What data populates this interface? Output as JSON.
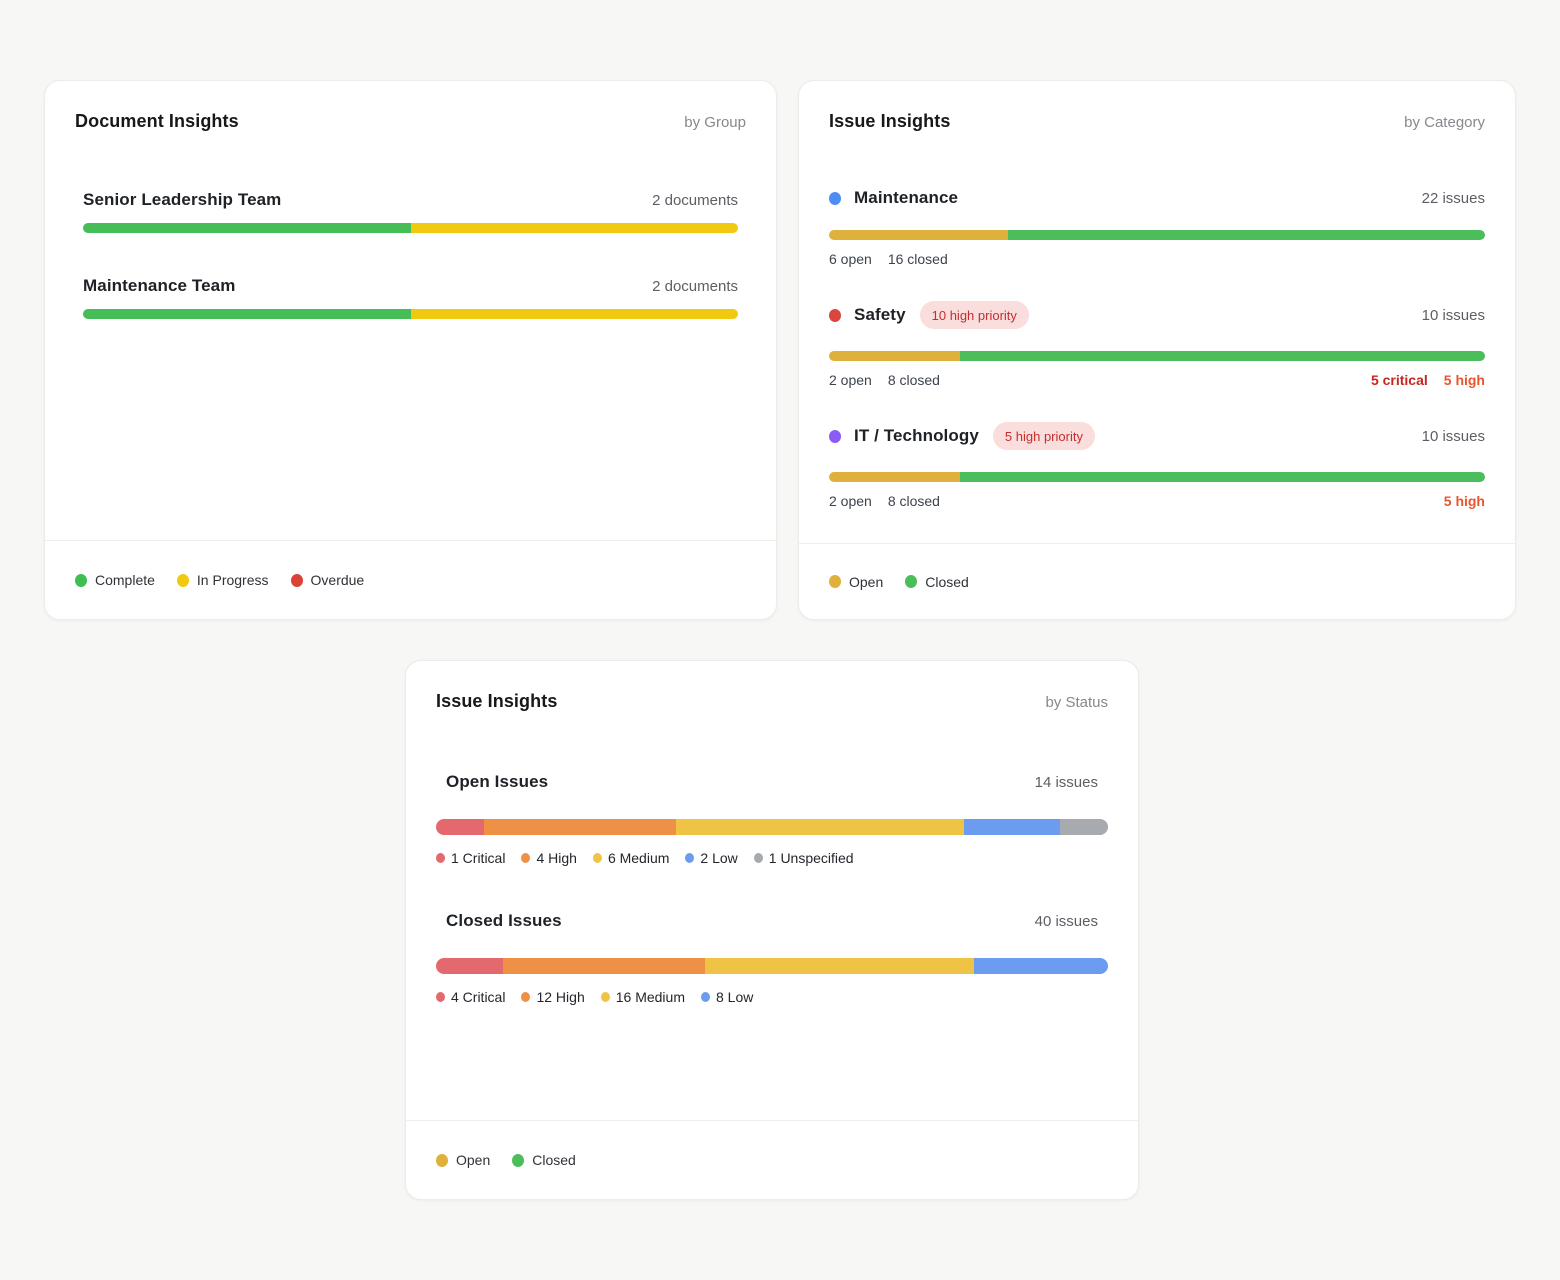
{
  "cards": {
    "documents": {
      "title": "Document Insights",
      "subtitle": "by Group",
      "rows": [
        {
          "name": "Senior Leadership Team",
          "total": "2 documents",
          "segments": [
            {
              "label": "Complete",
              "color": "#45BE58",
              "pct": 50
            },
            {
              "label": "In Progress",
              "color": "#F2C911",
              "pct": 50
            }
          ]
        },
        {
          "name": "Maintenance Team",
          "total": "2 documents",
          "segments": [
            {
              "label": "Complete",
              "color": "#45BE58",
              "pct": 50
            },
            {
              "label": "In Progress",
              "color": "#F2C911",
              "pct": 50
            }
          ]
        }
      ],
      "legend": [
        {
          "label": "Complete",
          "color": "#3FBE54"
        },
        {
          "label": "In Progress",
          "color": "#F2C911"
        },
        {
          "label": "Overdue",
          "color": "#DB4136"
        }
      ]
    },
    "issues_by_category": {
      "title": "Issue Insights",
      "subtitle": "by Category",
      "rows": [
        {
          "dot_color": "#4C8DF5",
          "name": "Maintenance",
          "badge": "",
          "total": "22 issues",
          "segments": [
            {
              "label": "Open",
              "color": "#DFB13C",
              "pct": 27.3
            },
            {
              "label": "Closed",
              "color": "#4BBE5B",
              "pct": 72.7
            }
          ],
          "stats": [
            "6 open",
            "16 closed"
          ],
          "right_stats": []
        },
        {
          "dot_color": "#DB4540",
          "name": "Safety",
          "badge": "10 high priority",
          "total": "10 issues",
          "segments": [
            {
              "label": "Open",
              "color": "#DFB13C",
              "pct": 20
            },
            {
              "label": "Closed",
              "color": "#4BBE5B",
              "pct": 80
            }
          ],
          "stats": [
            "2 open",
            "8 closed"
          ],
          "right_stats": [
            {
              "text": "5 critical",
              "color": "#C5261F"
            },
            {
              "text": "5 high",
              "color": "#E8562E"
            }
          ]
        },
        {
          "dot_color": "#8A5BF6",
          "name": "IT / Technology",
          "badge": "5 high priority",
          "total": "10 issues",
          "segments": [
            {
              "label": "Open",
              "color": "#DFB13C",
              "pct": 20
            },
            {
              "label": "Closed",
              "color": "#4BBE5B",
              "pct": 80
            }
          ],
          "stats": [
            "2 open",
            "8 closed"
          ],
          "right_stats": [
            {
              "text": "5 high",
              "color": "#E8562E"
            }
          ]
        }
      ],
      "legend": [
        {
          "label": "Open",
          "color": "#DFB13C"
        },
        {
          "label": "Closed",
          "color": "#4BBE5B"
        }
      ]
    },
    "issues_by_status": {
      "title": "Issue Insights",
      "subtitle": "by Status",
      "sections": [
        {
          "name": "Open Issues",
          "total": "14 issues",
          "segments": [
            {
              "label": "1 Critical",
              "color": "#E3696F",
              "pct": 7.14
            },
            {
              "label": "4 High",
              "color": "#EE9045",
              "pct": 28.57
            },
            {
              "label": "6 Medium",
              "color": "#EFC444",
              "pct": 42.86
            },
            {
              "label": "2 Low",
              "color": "#6C9CEF",
              "pct": 14.29
            },
            {
              "label": "1 Unspecified",
              "color": "#A7ABAF",
              "pct": 7.14
            }
          ]
        },
        {
          "name": "Closed Issues",
          "total": "40 issues",
          "segments": [
            {
              "label": "4 Critical",
              "color": "#E3696F",
              "pct": 10
            },
            {
              "label": "12 High",
              "color": "#EE9045",
              "pct": 30
            },
            {
              "label": "16 Medium",
              "color": "#EFC444",
              "pct": 40
            },
            {
              "label": "8 Low",
              "color": "#6C9CEF",
              "pct": 20
            }
          ]
        }
      ],
      "legend": [
        {
          "label": "Open",
          "color": "#DFB13C"
        },
        {
          "label": "Closed",
          "color": "#4BBE5B"
        }
      ]
    }
  },
  "chart_data": [
    {
      "type": "bar",
      "variant": "horizontal-stacked",
      "title": "Document Insights by Group",
      "categories": [
        "Senior Leadership Team",
        "Maintenance Team"
      ],
      "series": [
        {
          "name": "Complete",
          "values": [
            1,
            1
          ],
          "color": "#45BE58"
        },
        {
          "name": "In Progress",
          "values": [
            1,
            1
          ],
          "color": "#F2C911"
        },
        {
          "name": "Overdue",
          "values": [
            0,
            0
          ],
          "color": "#DB4136"
        }
      ],
      "totals_label": [
        "2 documents",
        "2 documents"
      ],
      "legend_position": "bottom",
      "grid": false
    },
    {
      "type": "bar",
      "variant": "horizontal-stacked",
      "title": "Issue Insights by Category",
      "categories": [
        "Maintenance",
        "Safety",
        "IT / Technology"
      ],
      "series": [
        {
          "name": "Open",
          "values": [
            6,
            2,
            2
          ],
          "color": "#DFB13C"
        },
        {
          "name": "Closed",
          "values": [
            16,
            8,
            8
          ],
          "color": "#4BBE5B"
        }
      ],
      "totals": [
        22,
        10,
        10
      ],
      "annotations": [
        {
          "category": "Safety",
          "badge": "10 high priority",
          "stats": "5 critical, 5 high"
        },
        {
          "category": "IT / Technology",
          "badge": "5 high priority",
          "stats": "5 high"
        }
      ],
      "legend_position": "bottom",
      "grid": false
    },
    {
      "type": "bar",
      "variant": "horizontal-stacked",
      "title": "Issue Insights by Status",
      "categories": [
        "Open Issues",
        "Closed Issues"
      ],
      "series": [
        {
          "name": "Critical",
          "values": [
            1,
            4
          ],
          "color": "#E3696F"
        },
        {
          "name": "High",
          "values": [
            4,
            12
          ],
          "color": "#EE9045"
        },
        {
          "name": "Medium",
          "values": [
            6,
            16
          ],
          "color": "#EFC444"
        },
        {
          "name": "Low",
          "values": [
            2,
            8
          ],
          "color": "#6C9CEF"
        },
        {
          "name": "Unspecified",
          "values": [
            1,
            0
          ],
          "color": "#A7ABAF"
        }
      ],
      "totals": [
        14,
        40
      ],
      "legend_position": "bottom",
      "grid": false
    }
  ]
}
